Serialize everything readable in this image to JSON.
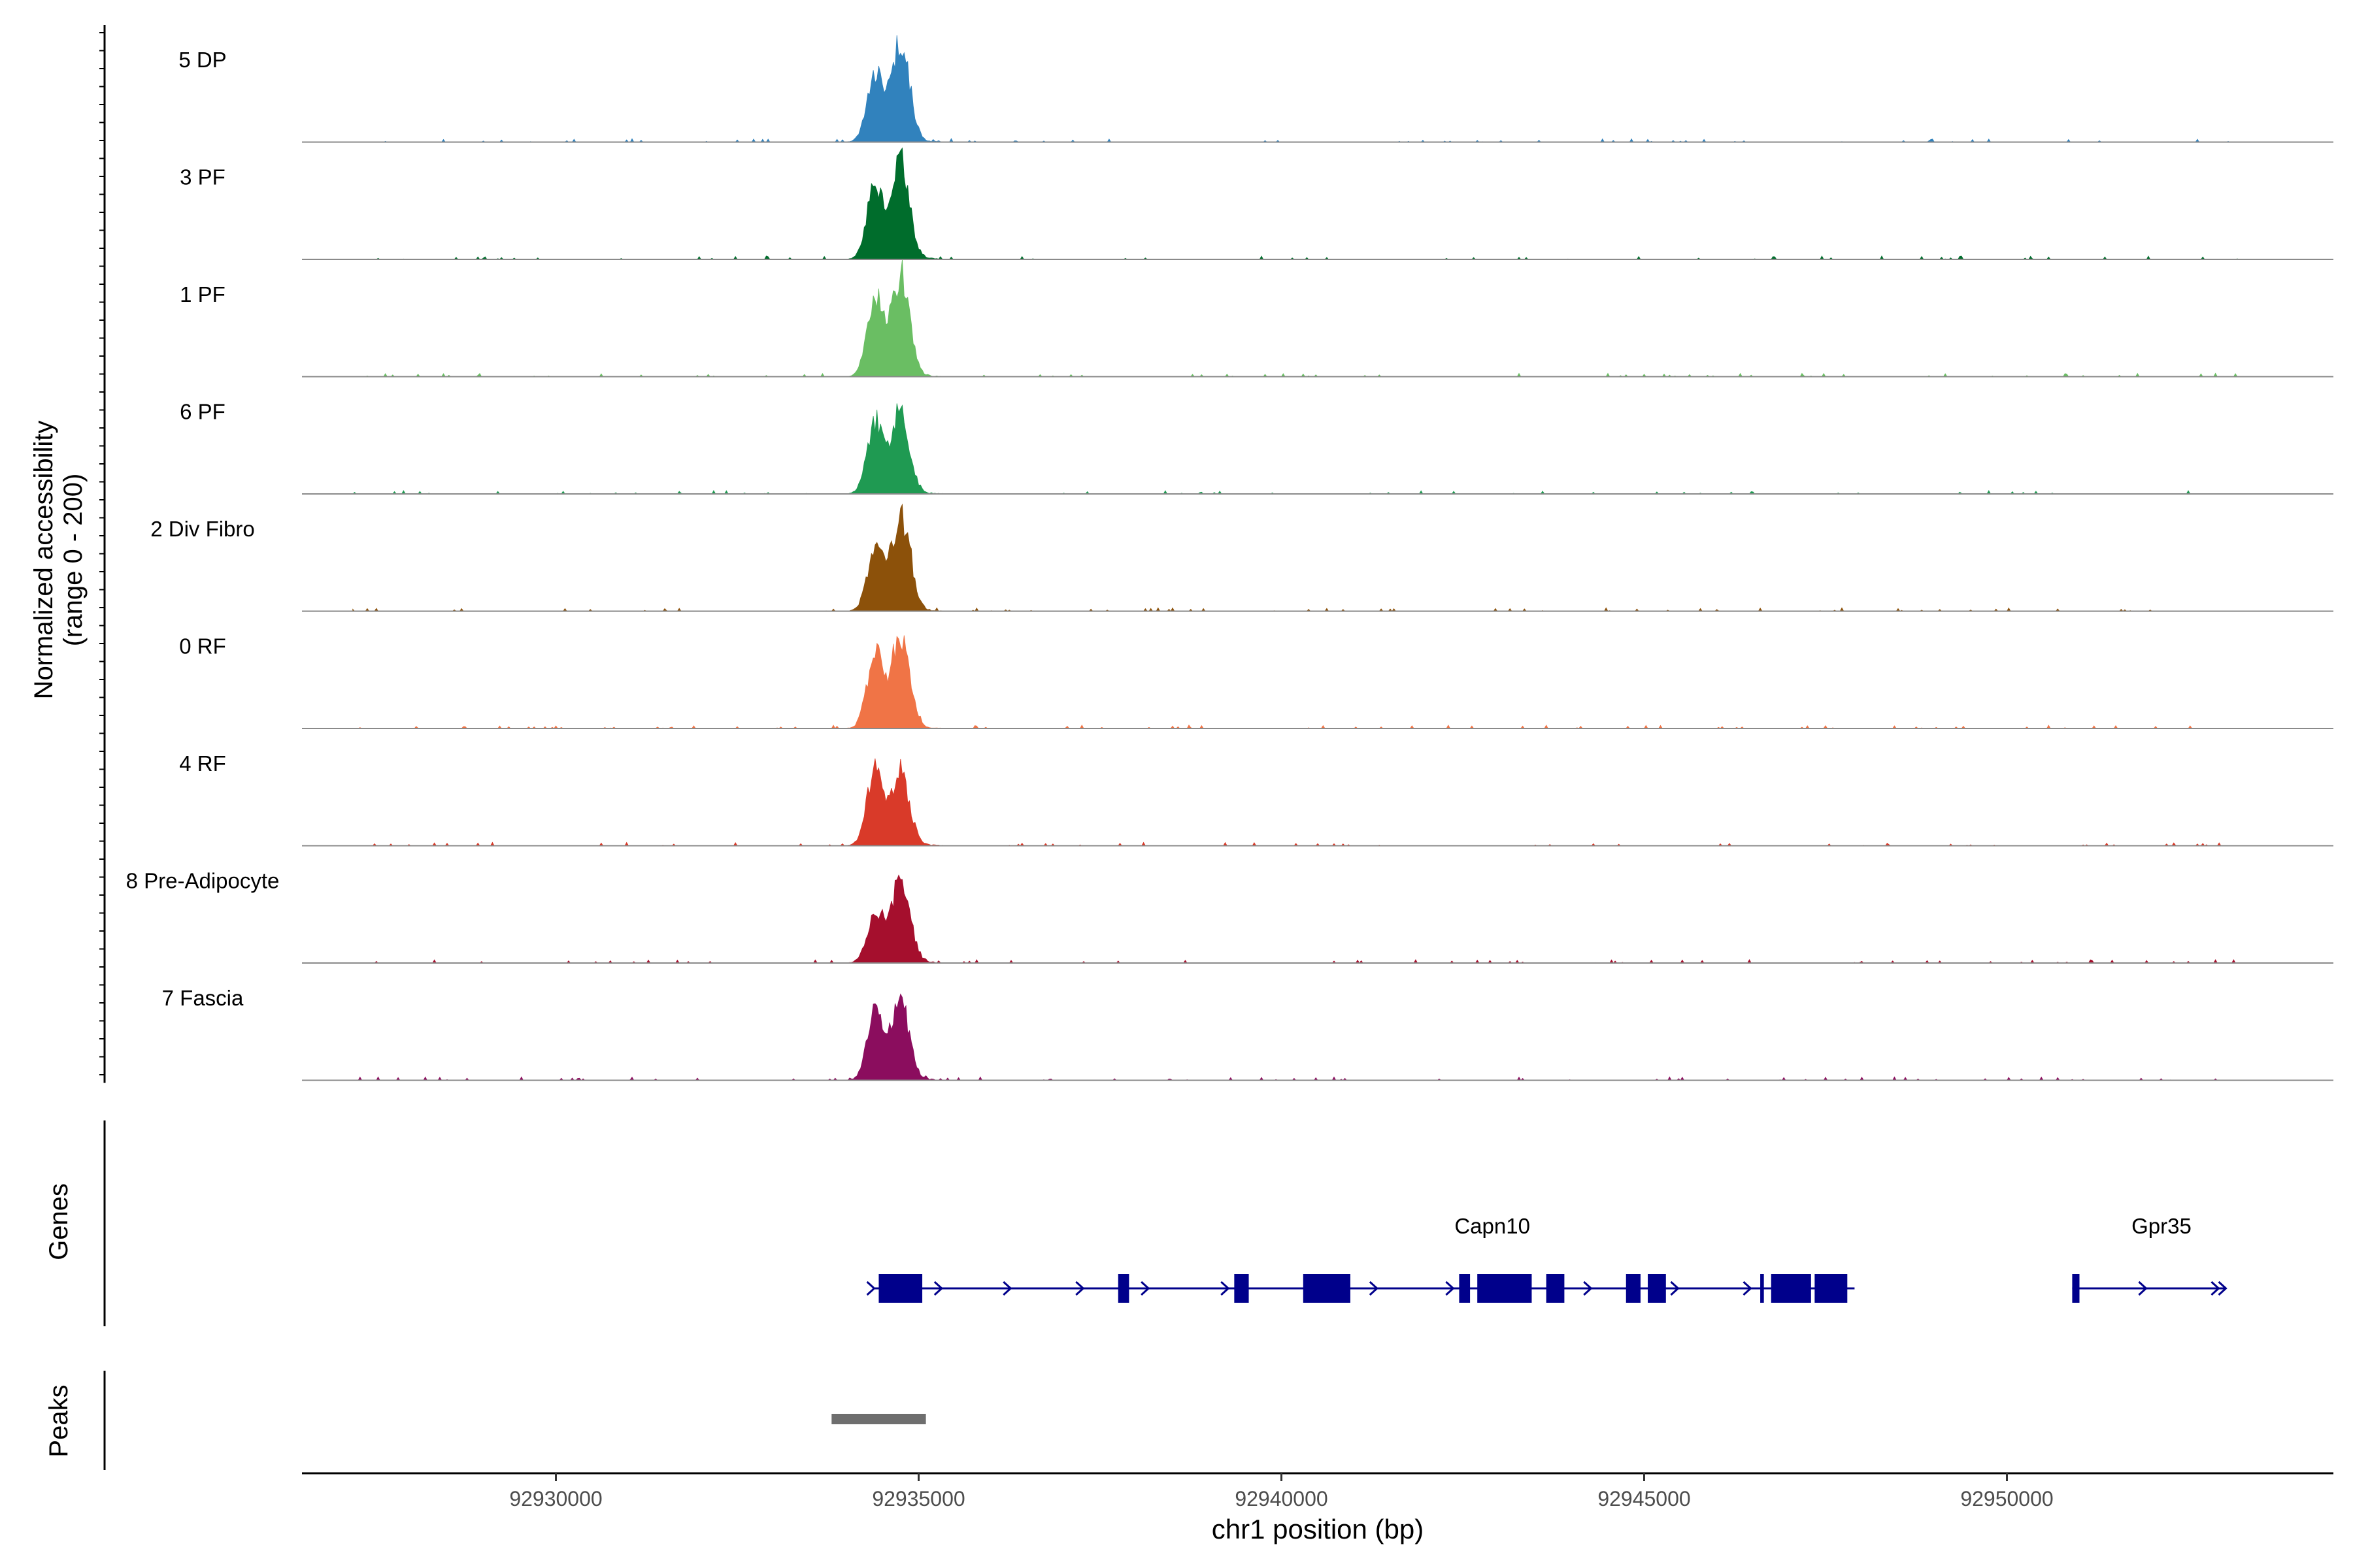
{
  "chart_data": {
    "type": "area",
    "title": "",
    "ylabel_line1": "Normalized accessibility",
    "ylabel_line2": "(range 0 - 200)",
    "xlabel": "chr1 position (bp)",
    "xlim": [
      92926500,
      92954500
    ],
    "x_ticks": [
      92930000,
      92935000,
      92940000,
      92945000,
      92950000
    ],
    "x_tick_labels": [
      "92930000",
      "92935000",
      "92940000",
      "92945000",
      "92950000"
    ],
    "ylim": [
      0,
      200
    ],
    "data_extent": [
      92927200,
      92953200
    ],
    "tracks": [
      {
        "name": "5 DP",
        "color": "#3182BD",
        "peaks": [
          [
            92934400,
            70,
            110
          ],
          [
            92934750,
            100,
            120
          ]
        ]
      },
      {
        "name": "3 PF",
        "color": "#006D2C",
        "peaks": [
          [
            92934400,
            75,
            110
          ],
          [
            92934750,
            100,
            120
          ]
        ]
      },
      {
        "name": "1 PF",
        "color": "#6ABE63",
        "peaks": [
          [
            92934400,
            80,
            110
          ],
          [
            92934750,
            100,
            120
          ]
        ]
      },
      {
        "name": "6 PF",
        "color": "#1F9A52",
        "peaks": [
          [
            92934400,
            72,
            110
          ],
          [
            92934750,
            82,
            120
          ]
        ]
      },
      {
        "name": "2 Div Fibro",
        "color": "#8C510A",
        "peaks": [
          [
            92934400,
            60,
            110
          ],
          [
            92934750,
            92,
            130
          ]
        ]
      },
      {
        "name": "0 RF",
        "color": "#F07446",
        "peaks": [
          [
            92934400,
            75,
            110
          ],
          [
            92934750,
            92,
            120
          ]
        ]
      },
      {
        "name": "4 RF",
        "color": "#D93A29",
        "peaks": [
          [
            92934400,
            75,
            110
          ],
          [
            92934750,
            72,
            120
          ]
        ]
      },
      {
        "name": "8 Pre-Adipocyte",
        "color": "#A50F2D",
        "peaks": [
          [
            92934400,
            50,
            110
          ],
          [
            92934750,
            82,
            130
          ]
        ]
      },
      {
        "name": "7 Fascia",
        "color": "#8B0D5E",
        "peaks": [
          [
            92934400,
            65,
            110
          ],
          [
            92934750,
            78,
            120
          ]
        ]
      }
    ],
    "genes_track_label": "Genes",
    "peaks_track_label": "Peaks",
    "gene_color": "#00008B",
    "genes": [
      {
        "name": "Capn10",
        "start": 92934400,
        "end": 92947900,
        "strand": "+",
        "exons": [
          [
            92934450,
            92935050
          ],
          [
            92937750,
            92937900
          ],
          [
            92939350,
            92939550
          ],
          [
            92940300,
            92940950
          ],
          [
            92942450,
            92942600
          ],
          [
            92942700,
            92943450
          ],
          [
            92943650,
            92943900
          ],
          [
            92944750,
            92944950
          ],
          [
            92945050,
            92945300
          ],
          [
            92946600,
            92946650
          ],
          [
            92946750,
            92947300
          ],
          [
            92947350,
            92947800
          ]
        ],
        "arrows": [
          92934370,
          92935300,
          92936250,
          92937250,
          92938150,
          92939250,
          92941300,
          92942350,
          92944250,
          92945450,
          92946450
        ]
      },
      {
        "name": "Gpr35",
        "start": 92950900,
        "end": 92953000,
        "strand": "+",
        "exons": [
          [
            92950900,
            92951000
          ]
        ],
        "arrows": [
          92951900,
          92952900,
          92953000
        ]
      }
    ],
    "peak_regions": [
      [
        92933800,
        92935100
      ]
    ],
    "peak_color": "#6E6E6E"
  }
}
